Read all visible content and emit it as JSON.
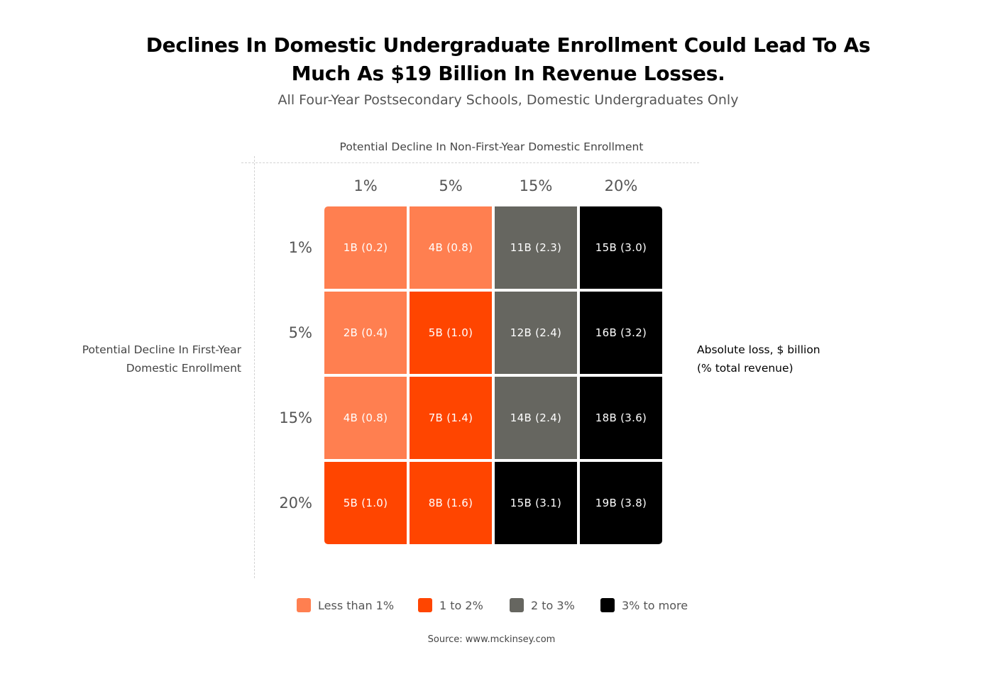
{
  "title_line1": "Declines In Domestic Undergraduate Enrollment Could Lead To As",
  "title_line2": "Much As $19 Billion In Revenue Losses.",
  "subtitle": "All Four-Year Postsecondary Schools, Domestic Undergraduates Only",
  "x_axis_title": "Potential Decline In Non-First-Year Domestic Enrollment",
  "y_axis_title_line1": "Potential Decline In First-Year",
  "y_axis_title_line2": "Domestic Enrollment",
  "side_note_line1": "Absolute loss, $ billion",
  "side_note_line2": "(% total revenue)",
  "source": "Source: www.mckinsey.com",
  "colors": {
    "less_than_1": "#FF7F50",
    "1_to_2": "#FF4500",
    "2_to_3": "#666660",
    "3_plus": "#000000"
  },
  "chart_data": {
    "type": "heatmap",
    "title": "Declines In Domestic Undergraduate Enrollment Could Lead To As Much As $19 Billion In Revenue Losses.",
    "subtitle": "All Four-Year Postsecondary Schools, Domestic Undergraduates Only",
    "xlabel": "Potential Decline In Non-First-Year Domestic Enrollment",
    "ylabel": "Potential Decline In First-Year Domestic Enrollment",
    "x_categories": [
      "1%",
      "5%",
      "15%",
      "20%"
    ],
    "y_categories": [
      "1%",
      "5%",
      "15%",
      "20%"
    ],
    "cells": [
      [
        {
          "label": "1B (0.2)",
          "loss_billion": 1,
          "pct_revenue": 0.2,
          "bucket": "less_than_1"
        },
        {
          "label": "4B (0.8)",
          "loss_billion": 4,
          "pct_revenue": 0.8,
          "bucket": "less_than_1"
        },
        {
          "label": "11B (2.3)",
          "loss_billion": 11,
          "pct_revenue": 2.3,
          "bucket": "2_to_3"
        },
        {
          "label": "15B (3.0)",
          "loss_billion": 15,
          "pct_revenue": 3.0,
          "bucket": "3_plus"
        }
      ],
      [
        {
          "label": "2B (0.4)",
          "loss_billion": 2,
          "pct_revenue": 0.4,
          "bucket": "less_than_1"
        },
        {
          "label": "5B (1.0)",
          "loss_billion": 5,
          "pct_revenue": 1.0,
          "bucket": "1_to_2"
        },
        {
          "label": "12B (2.4)",
          "loss_billion": 12,
          "pct_revenue": 2.4,
          "bucket": "2_to_3"
        },
        {
          "label": "16B (3.2)",
          "loss_billion": 16,
          "pct_revenue": 3.2,
          "bucket": "3_plus"
        }
      ],
      [
        {
          "label": "4B (0.8)",
          "loss_billion": 4,
          "pct_revenue": 0.8,
          "bucket": "less_than_1"
        },
        {
          "label": "7B (1.4)",
          "loss_billion": 7,
          "pct_revenue": 1.4,
          "bucket": "1_to_2"
        },
        {
          "label": "14B (2.4)",
          "loss_billion": 14,
          "pct_revenue": 2.4,
          "bucket": "2_to_3"
        },
        {
          "label": "18B (3.6)",
          "loss_billion": 18,
          "pct_revenue": 3.6,
          "bucket": "3_plus"
        }
      ],
      [
        {
          "label": "5B (1.0)",
          "loss_billion": 5,
          "pct_revenue": 1.0,
          "bucket": "1_to_2"
        },
        {
          "label": "8B (1.6)",
          "loss_billion": 8,
          "pct_revenue": 1.6,
          "bucket": "1_to_2"
        },
        {
          "label": "15B (3.1)",
          "loss_billion": 15,
          "pct_revenue": 3.1,
          "bucket": "3_plus"
        },
        {
          "label": "19B (3.8)",
          "loss_billion": 19,
          "pct_revenue": 3.8,
          "bucket": "3_plus"
        }
      ]
    ],
    "legend": [
      {
        "bucket": "less_than_1",
        "label": "Less than 1%"
      },
      {
        "bucket": "1_to_2",
        "label": "1 to 2%"
      },
      {
        "bucket": "2_to_3",
        "label": "2 to 3%"
      },
      {
        "bucket": "3_plus",
        "label": "3% to more"
      }
    ],
    "legend_position": "bottom-center",
    "grid": false
  }
}
